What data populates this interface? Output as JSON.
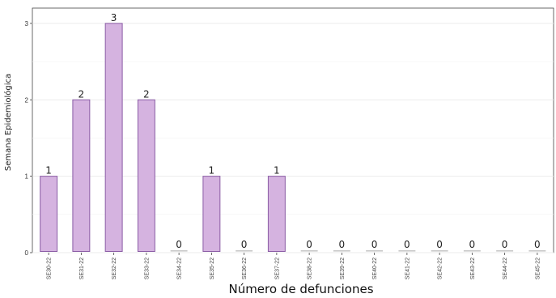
{
  "chart_data": {
    "type": "bar",
    "title": "",
    "xlabel": "Número de defunciones",
    "ylabel": "Semana Epidemiológica",
    "categories": [
      "SE30-22",
      "SE31-22",
      "SE32-22",
      "SE33-22",
      "SE34-22",
      "SE35-22",
      "SE36-22",
      "SE37-22",
      "SE38-22",
      "SE39-22",
      "SE40-22",
      "SE41-22",
      "SE42-22",
      "SE43-22",
      "SE44-22",
      "SE45-22"
    ],
    "values": [
      1,
      2,
      3,
      2,
      0,
      1,
      0,
      1,
      0,
      0,
      0,
      0,
      0,
      0,
      0,
      0
    ],
    "ylim": [
      0,
      3.2
    ],
    "yticks": [
      0,
      1,
      2,
      3
    ],
    "grid": true,
    "colors": {
      "bar_fill": "#d5b3e0",
      "bar_stroke": "#8a5ca5",
      "zero_bar": "#c9c9c9",
      "grid": "#ebebeb",
      "axis": "#444444"
    }
  }
}
